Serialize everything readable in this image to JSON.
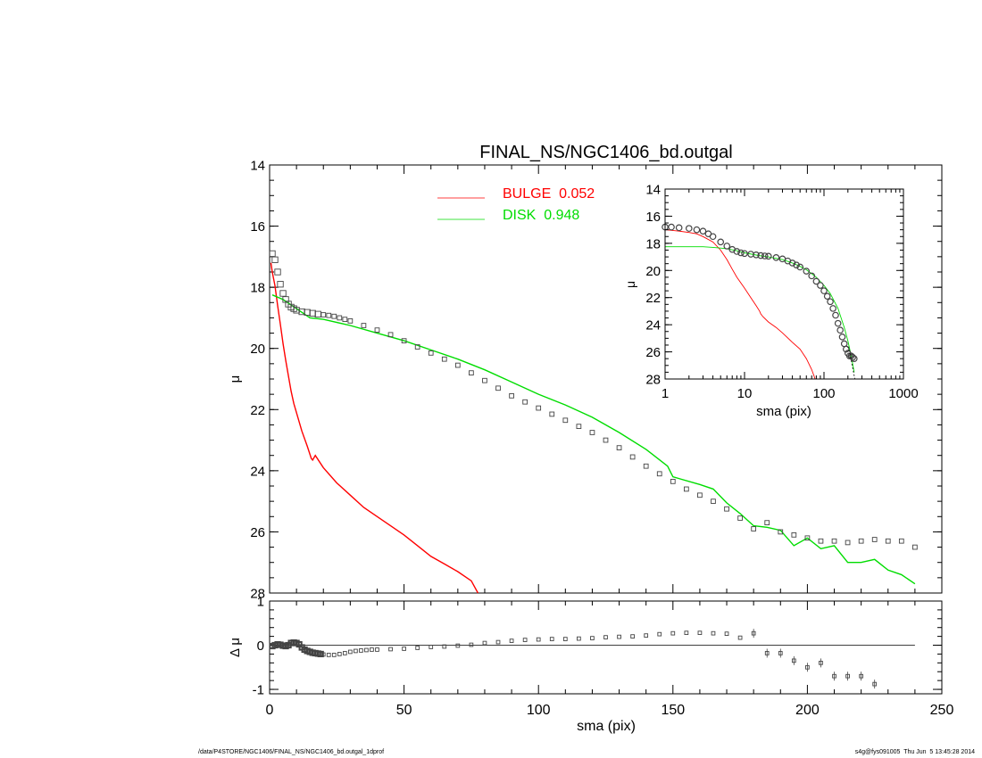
{
  "footer": {
    "left": "/data/P4STORE/NGC1406/FINAL_NS/NGC1406_bd.outgal_1dprof",
    "right": "s4g@fys091005  Thu Jun  5 13:45:28 2014"
  },
  "chart_data": [
    {
      "id": "main",
      "type": "line",
      "title": "FINAL_NS/NGC1406_bd.outgal",
      "xlabel": "",
      "ylabel": "μ",
      "xlim": [
        0,
        250
      ],
      "ylim": [
        28,
        14
      ],
      "y_inverted": true,
      "y_ticks": [
        14,
        16,
        18,
        20,
        22,
        24,
        26,
        28
      ],
      "y_tick_labels": [
        "14",
        "16",
        "18",
        "20",
        "22",
        "24",
        "26",
        "28"
      ],
      "legend_position": "top-center",
      "series": [
        {
          "name": "BULGE  0.052",
          "style": "line",
          "color": "#ff0000",
          "x": [
            0.5,
            1,
            2,
            3,
            4,
            5,
            6,
            7,
            8,
            9,
            10,
            12,
            14,
            15.5,
            16,
            17,
            20,
            25,
            30,
            35,
            40,
            45,
            50,
            55,
            60,
            65,
            70,
            75,
            77.5
          ],
          "y": [
            17.2,
            17.5,
            17.95,
            18.6,
            19.2,
            19.85,
            20.4,
            20.9,
            21.4,
            21.8,
            22.1,
            22.7,
            23.2,
            23.6,
            23.65,
            23.5,
            23.9,
            24.4,
            24.8,
            25.2,
            25.5,
            25.8,
            26.1,
            26.45,
            26.8,
            27.05,
            27.3,
            27.6,
            28.0
          ]
        },
        {
          "name": "DISK  0.948",
          "style": "line",
          "color": "#00dd00",
          "x": [
            1,
            5,
            10,
            15,
            20,
            30,
            40,
            50,
            60,
            70,
            80,
            90,
            100,
            110,
            120,
            130,
            140,
            148,
            150,
            160,
            165,
            170,
            175,
            180,
            185,
            190,
            195,
            200,
            205,
            210,
            215,
            220,
            225,
            230,
            235,
            240
          ],
          "y": [
            18.25,
            18.4,
            18.7,
            19.0,
            19.05,
            19.25,
            19.5,
            19.75,
            20.05,
            20.35,
            20.7,
            21.1,
            21.5,
            21.85,
            22.25,
            22.75,
            23.3,
            23.85,
            24.2,
            24.45,
            24.6,
            25.05,
            25.4,
            25.8,
            25.85,
            25.95,
            26.45,
            26.2,
            26.55,
            26.45,
            27.0,
            27.0,
            26.9,
            27.25,
            27.4,
            27.7
          ]
        },
        {
          "name": "",
          "style": "markers",
          "color": "#444444",
          "x": [
            1,
            2,
            3,
            4,
            5,
            6,
            7,
            8,
            9,
            10,
            12,
            14,
            16,
            18,
            20,
            22,
            24,
            26,
            28,
            30,
            35,
            40,
            45,
            50,
            55,
            60,
            65,
            70,
            75,
            80,
            85,
            90,
            95,
            100,
            105,
            110,
            115,
            120,
            125,
            130,
            135,
            140,
            145,
            150,
            155,
            160,
            165,
            170,
            175,
            180,
            185,
            190,
            195,
            200,
            205,
            210,
            215,
            220,
            225,
            230,
            235,
            240
          ],
          "y": [
            16.9,
            17.1,
            17.5,
            17.9,
            18.2,
            18.4,
            18.55,
            18.65,
            18.7,
            18.75,
            18.8,
            18.82,
            18.85,
            18.88,
            18.9,
            18.92,
            18.95,
            19.0,
            19.05,
            19.1,
            19.25,
            19.4,
            19.55,
            19.75,
            19.95,
            20.15,
            20.35,
            20.55,
            20.8,
            21.05,
            21.3,
            21.55,
            21.75,
            21.95,
            22.15,
            22.35,
            22.55,
            22.75,
            23.0,
            23.25,
            23.55,
            23.85,
            24.1,
            24.35,
            24.6,
            24.8,
            25.0,
            25.25,
            25.55,
            25.9,
            25.7,
            26.0,
            26.1,
            26.2,
            26.3,
            26.3,
            26.35,
            26.3,
            26.25,
            26.3,
            26.3,
            26.5
          ]
        }
      ]
    },
    {
      "id": "residual",
      "type": "scatter",
      "xlabel": "sma (pix)",
      "ylabel": "Δ μ",
      "xlim": [
        0,
        250
      ],
      "ylim": [
        -1.1,
        1.0
      ],
      "x_ticks": [
        0,
        50,
        100,
        150,
        200,
        250
      ],
      "x_tick_labels": [
        "0",
        "50",
        "100",
        "150",
        "200",
        "250"
      ],
      "y_ticks": [
        1,
        0,
        -1
      ],
      "y_tick_labels": [
        "1",
        "0",
        "-1"
      ],
      "zero_line": true,
      "series": [
        {
          "name": "",
          "x": [
            1,
            2,
            3,
            4,
            5,
            6,
            7,
            8,
            9,
            10,
            11,
            12,
            13,
            14,
            15,
            16,
            17,
            18,
            19,
            20,
            22,
            24,
            26,
            28,
            30,
            32,
            34,
            36,
            38,
            40,
            45,
            50,
            55,
            60,
            65,
            70,
            75,
            80,
            85,
            90,
            95,
            100,
            105,
            110,
            115,
            120,
            125,
            130,
            135,
            140,
            145,
            150,
            155,
            160,
            165,
            170,
            175,
            180,
            185,
            190,
            195,
            200,
            205,
            210,
            215,
            220,
            225
          ],
          "y": [
            -0.02,
            0.0,
            0.02,
            0.01,
            -0.01,
            -0.02,
            0.0,
            0.05,
            0.06,
            0.05,
            0.02,
            -0.05,
            -0.1,
            -0.13,
            -0.15,
            -0.17,
            -0.18,
            -0.19,
            -0.2,
            -0.21,
            -0.22,
            -0.22,
            -0.2,
            -0.18,
            -0.15,
            -0.13,
            -0.12,
            -0.11,
            -0.1,
            -0.1,
            -0.09,
            -0.08,
            -0.06,
            -0.04,
            -0.03,
            -0.01,
            0.01,
            0.05,
            0.07,
            0.1,
            0.12,
            0.13,
            0.14,
            0.14,
            0.15,
            0.16,
            0.18,
            0.19,
            0.2,
            0.22,
            0.25,
            0.27,
            0.28,
            0.28,
            0.27,
            0.26,
            0.17,
            0.27,
            -0.18,
            -0.18,
            -0.35,
            -0.5,
            -0.4,
            -0.7,
            -0.7,
            -0.7,
            -0.88
          ]
        }
      ]
    },
    {
      "id": "inset",
      "type": "line",
      "xlabel": "sma (pix)",
      "ylabel": "μ",
      "x_scale": "log",
      "xlim": [
        1,
        1000
      ],
      "ylim": [
        28,
        14
      ],
      "y_inverted": true,
      "x_ticks": [
        1,
        10,
        100,
        1000
      ],
      "x_tick_labels": [
        "1",
        "10",
        "100",
        "1000"
      ],
      "y_ticks": [
        14,
        16,
        18,
        20,
        22,
        24,
        26,
        28
      ],
      "y_tick_labels": [
        "14",
        "16",
        "18",
        "20",
        "22",
        "24",
        "26",
        "28"
      ],
      "series": [
        {
          "name": "",
          "style": "line",
          "color": "#ff0000",
          "x": [
            1,
            1.5,
            2,
            2.5,
            3,
            4,
            5,
            6,
            7,
            8,
            10,
            12,
            14,
            15.5,
            16,
            17,
            20,
            25,
            30,
            40,
            50,
            60,
            70,
            77.5
          ],
          "y": [
            17.0,
            17.1,
            17.2,
            17.3,
            17.5,
            17.9,
            18.5,
            19.2,
            19.9,
            20.5,
            21.3,
            22.0,
            22.6,
            23.0,
            23.2,
            23.4,
            23.8,
            24.2,
            24.6,
            25.3,
            25.8,
            26.5,
            27.3,
            28.0
          ]
        },
        {
          "name": "",
          "style": "line",
          "color": "#00dd00",
          "x": [
            1,
            2,
            3,
            4,
            5,
            6,
            8,
            10,
            15,
            20,
            30,
            40,
            50,
            60,
            80,
            100,
            120,
            150,
            180,
            200,
            220,
            240
          ],
          "y": [
            18.25,
            18.25,
            18.25,
            18.3,
            18.35,
            18.4,
            18.55,
            18.7,
            18.9,
            19.0,
            19.2,
            19.45,
            19.7,
            19.95,
            20.5,
            21.1,
            21.7,
            22.8,
            24.2,
            25.2,
            26.3,
            27.5
          ]
        },
        {
          "name": "",
          "style": "markers",
          "color": "#444444",
          "x": [
            1,
            1.2,
            1.5,
            2,
            2.5,
            3,
            3.5,
            4,
            5,
            6,
            7,
            8,
            9,
            10,
            12,
            14,
            16,
            18,
            20,
            25,
            30,
            35,
            40,
            45,
            50,
            60,
            70,
            80,
            90,
            100,
            110,
            120,
            130,
            140,
            150,
            160,
            170,
            180,
            190,
            200,
            210,
            220,
            230,
            240
          ],
          "y": [
            16.8,
            16.8,
            16.85,
            16.9,
            17.0,
            17.1,
            17.3,
            17.5,
            17.9,
            18.2,
            18.45,
            18.6,
            18.7,
            18.75,
            18.8,
            18.85,
            18.9,
            18.93,
            18.95,
            19.05,
            19.15,
            19.3,
            19.45,
            19.6,
            19.75,
            20.05,
            20.4,
            20.8,
            21.1,
            21.5,
            21.9,
            22.3,
            22.8,
            23.3,
            23.9,
            24.4,
            24.9,
            25.4,
            25.8,
            26.1,
            26.3,
            26.3,
            26.4,
            26.5
          ]
        }
      ]
    }
  ]
}
